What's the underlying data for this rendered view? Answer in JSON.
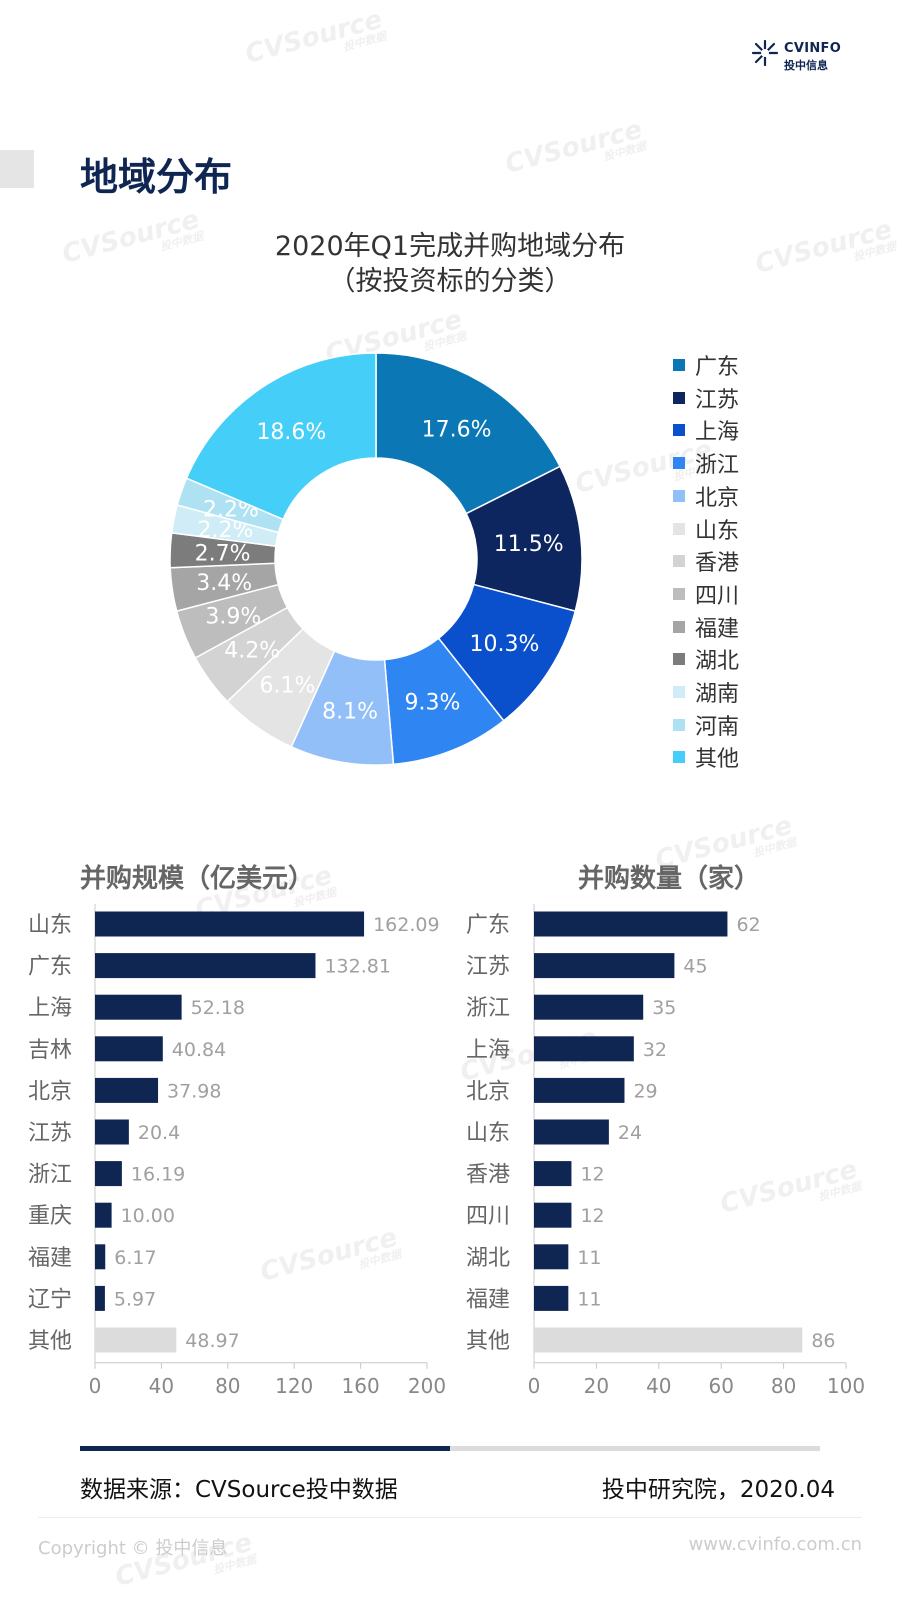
{
  "logo": {
    "line1": "CVINFO",
    "line2": "投中信息"
  },
  "page_title": "地域分布",
  "chart_data": [
    {
      "type": "pie",
      "title": "2020年Q1完成并购地域分布",
      "subtitle": "（按投资标的分类）",
      "categories": [
        "广东",
        "江苏",
        "上海",
        "浙江",
        "北京",
        "山东",
        "香港",
        "四川",
        "福建",
        "湖北",
        "湖南",
        "河南",
        "其他"
      ],
      "values": [
        17.6,
        11.5,
        10.3,
        9.3,
        8.1,
        6.1,
        4.2,
        3.9,
        3.4,
        2.7,
        2.2,
        2.2,
        18.6
      ],
      "value_labels": [
        "17.6%",
        "11.5%",
        "10.3%",
        "9.3%",
        "8.1%",
        "6.1%",
        "4.2%",
        "3.9%",
        "3.4%",
        "2.7%",
        "2.2%",
        "2.2%",
        "18.6%"
      ],
      "colors": [
        "#0b78b5",
        "#0d2660",
        "#0a4fcc",
        "#2f86f2",
        "#92bff8",
        "#e4e4e4",
        "#d3d3d3",
        "#bdbdbd",
        "#a5a5a5",
        "#7c7c7c",
        "#d0edf7",
        "#aee2f3",
        "#45cff8"
      ],
      "legend_position": "right"
    },
    {
      "type": "bar",
      "orientation": "horizontal",
      "title": "并购规模（亿美元）",
      "categories": [
        "山东",
        "广东",
        "上海",
        "吉林",
        "北京",
        "江苏",
        "浙江",
        "重庆",
        "福建",
        "辽宁",
        "其他"
      ],
      "values": [
        162.09,
        132.81,
        52.18,
        40.84,
        37.98,
        20.4,
        16.19,
        10.0,
        6.17,
        5.97,
        48.97
      ],
      "value_labels": [
        "162.09",
        "132.81",
        "52.18",
        "40.84",
        "37.98",
        "20.4",
        "16.19",
        "10.00",
        "6.17",
        "5.97",
        "48.97"
      ],
      "xlim": [
        0,
        200
      ],
      "xticks": [
        0,
        40,
        80,
        120,
        160,
        200
      ],
      "bar_color": "#0f2552",
      "other_color": "#dcdcdc"
    },
    {
      "type": "bar",
      "orientation": "horizontal",
      "title": "并购数量（家）",
      "categories": [
        "广东",
        "江苏",
        "浙江",
        "上海",
        "北京",
        "山东",
        "香港",
        "四川",
        "湖北",
        "福建",
        "其他"
      ],
      "values": [
        62,
        45,
        35,
        32,
        29,
        24,
        12,
        12,
        11,
        11,
        86
      ],
      "value_labels": [
        "62",
        "45",
        "35",
        "32",
        "29",
        "24",
        "12",
        "12",
        "11",
        "11",
        "86"
      ],
      "xlim": [
        0,
        100
      ],
      "xticks": [
        0,
        20,
        40,
        60,
        80,
        100
      ],
      "bar_color": "#0f2552",
      "other_color": "#dcdcdc"
    }
  ],
  "footer": {
    "source": "数据来源：CVSource投中数据",
    "org_date": "投中研究院，2020.04",
    "copyright": "Copyright © 投中信息",
    "website": "www.cvinfo.com.cn"
  },
  "watermark": {
    "brand": "CVSource",
    "sub": "投中数据"
  }
}
